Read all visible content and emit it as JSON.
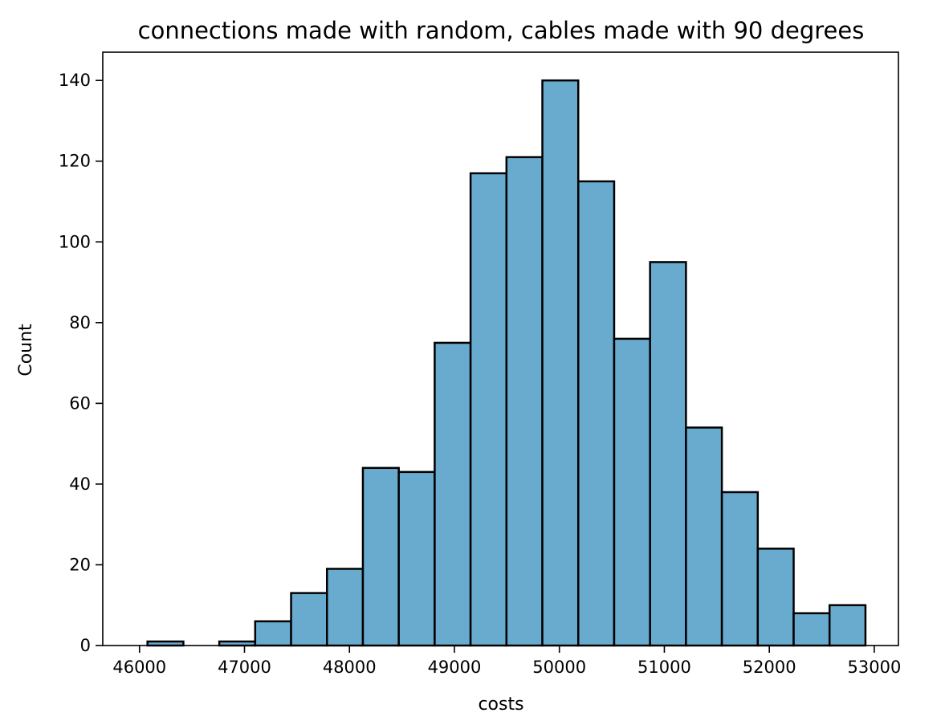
{
  "chart_data": {
    "type": "bar",
    "title": "connections made with random, cables made with 90 degrees",
    "xlabel": "costs",
    "ylabel": "Count",
    "xlim": [
      45650,
      53230
    ],
    "ylim": [
      0,
      147
    ],
    "xticks": [
      46000,
      47000,
      48000,
      49000,
      50000,
      51000,
      52000,
      53000
    ],
    "yticks": [
      0,
      20,
      40,
      60,
      80,
      100,
      120,
      140
    ],
    "bin_edges": [
      46076,
      46418,
      46760,
      47102,
      47444,
      47786,
      48128,
      48470,
      48812,
      49154,
      49496,
      49838,
      50180,
      50522,
      50864,
      51206,
      51548,
      51890,
      52232,
      52574,
      52916
    ],
    "values": [
      1,
      0,
      1,
      6,
      13,
      19,
      44,
      43,
      75,
      117,
      121,
      140,
      115,
      76,
      95,
      54,
      38,
      24,
      8,
      10
    ],
    "bar_color": "#69aacf",
    "edge_color": "#000000",
    "grid": false,
    "legend": "none"
  }
}
